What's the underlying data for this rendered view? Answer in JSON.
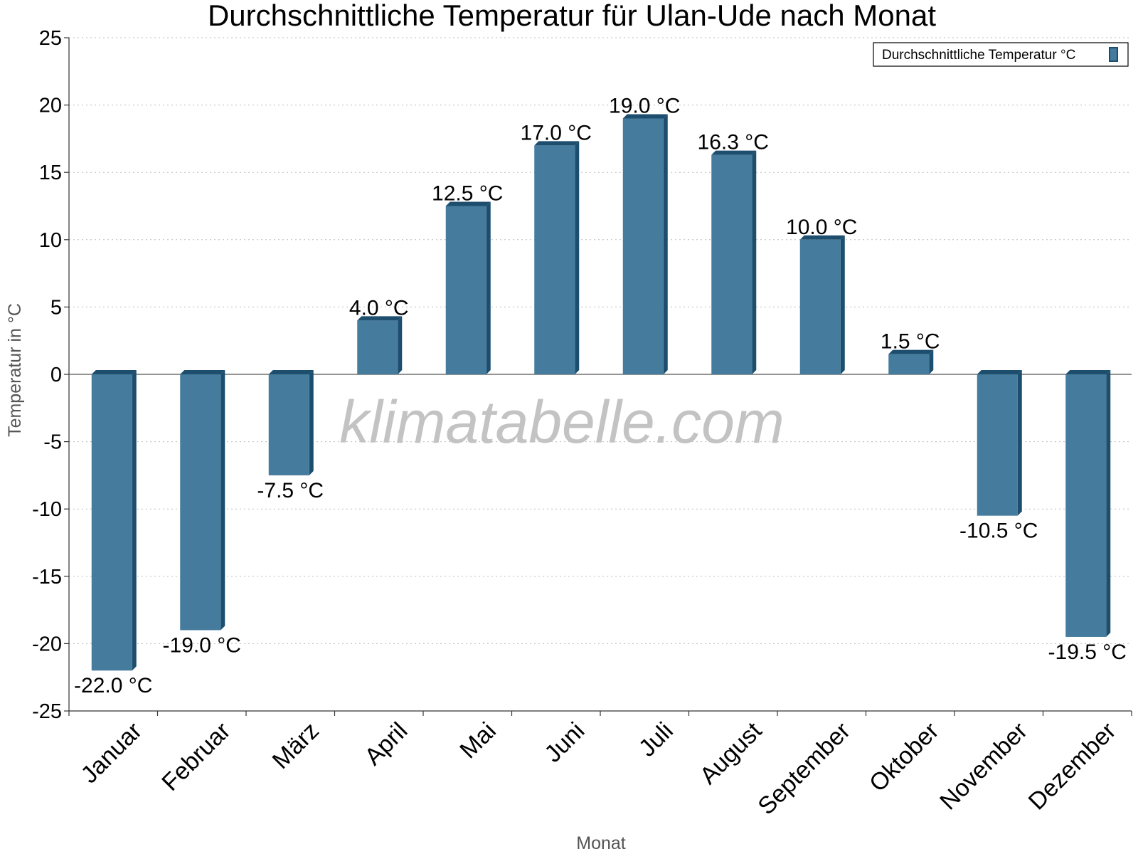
{
  "title": "Durchschnittliche Temperatur für Ulan-Ude nach Monat",
  "watermark": "klimatabelle.com",
  "chart_data": {
    "type": "bar",
    "title": "Durchschnittliche Temperatur für Ulan-Ude nach Monat",
    "xlabel": "Monat",
    "ylabel": "Temperatur in °C",
    "categories": [
      "Januar",
      "Februar",
      "März",
      "April",
      "Mai",
      "Juni",
      "Juli",
      "August",
      "September",
      "Oktober",
      "November",
      "Dezember"
    ],
    "series": [
      {
        "name": "Durchschnittliche Temperatur °C",
        "values": [
          -22.0,
          -19.0,
          -7.5,
          4.0,
          12.5,
          17.0,
          19.0,
          16.3,
          10.0,
          1.5,
          -10.5,
          -19.5
        ],
        "labels": [
          "-22.0 °C",
          "-19.0 °C",
          "-7.5 °C",
          "4.0 °C",
          "12.5 °C",
          "17.0 °C",
          "19.0 °C",
          "16.3 °C",
          "10.0 °C",
          "1.5 °C",
          "-10.5 °C",
          "-19.5 °C"
        ],
        "color": "#457b9d",
        "edge_color": "#1d4e6e"
      }
    ],
    "ylim": [
      -25,
      25
    ],
    "yticks": [
      25,
      20,
      15,
      10,
      5,
      0,
      -5,
      -10,
      -15,
      -20,
      -25
    ],
    "grid": true,
    "legend_position": "top-right"
  }
}
